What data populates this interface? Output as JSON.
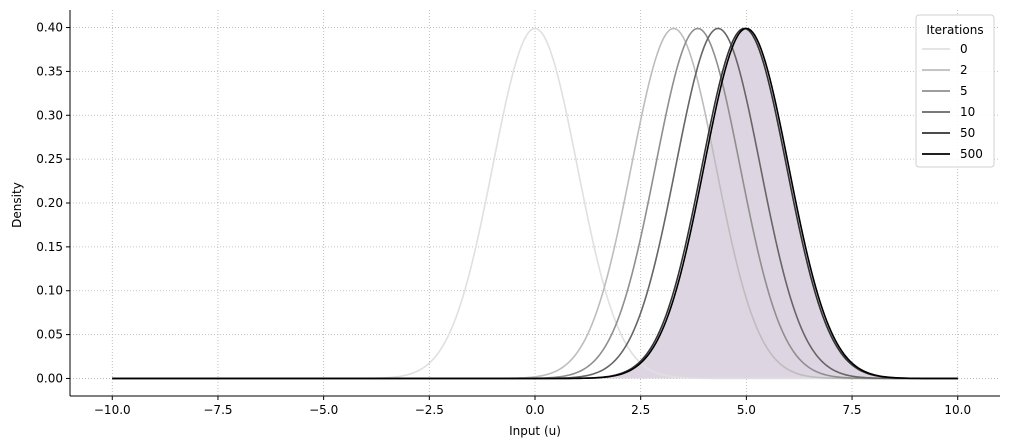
{
  "chart_data": {
    "type": "line",
    "title": "",
    "xlabel": "Input (u)",
    "ylabel": "Density",
    "xlim": [
      -11.0,
      11.0
    ],
    "ylim": [
      -0.02,
      0.42
    ],
    "x_ticks": [
      -10.0,
      -7.5,
      -5.0,
      -2.5,
      0.0,
      2.5,
      5.0,
      7.5,
      10.0
    ],
    "x_tick_labels": [
      "−10.0",
      "−7.5",
      "−5.0",
      "−2.5",
      "0.0",
      "2.5",
      "5.0",
      "7.5",
      "10.0"
    ],
    "y_ticks": [
      0.0,
      0.05,
      0.1,
      0.15,
      0.2,
      0.25,
      0.3,
      0.35,
      0.4
    ],
    "y_tick_labels": [
      "0.00",
      "0.05",
      "0.10",
      "0.15",
      "0.20",
      "0.25",
      "0.30",
      "0.35",
      "0.40"
    ],
    "grid": true,
    "grid_style": "dotted",
    "x_range": [
      -10.0,
      10.0
    ],
    "legend": {
      "title": "Iterations",
      "placement": "top-right"
    },
    "series": [
      {
        "name": "0",
        "mean": 0.0,
        "std": 1.0,
        "peak": 0.399,
        "color": "#e0e0e0"
      },
      {
        "name": "2",
        "mean": 3.28,
        "std": 1.0,
        "peak": 0.399,
        "color": "#bdbdbd"
      },
      {
        "name": "5",
        "mean": 3.85,
        "std": 1.0,
        "peak": 0.399,
        "color": "#8f8f8f"
      },
      {
        "name": "10",
        "mean": 4.33,
        "std": 1.0,
        "peak": 0.399,
        "color": "#666666"
      },
      {
        "name": "50",
        "mean": 4.95,
        "std": 1.0,
        "peak": 0.399,
        "color": "#333333"
      },
      {
        "name": "500",
        "mean": 5.0,
        "std": 1.0,
        "peak": 0.399,
        "color": "#000000"
      }
    ],
    "shaded_area": {
      "mean": 5.0,
      "std": 1.0,
      "color": "#dcd3e0"
    }
  }
}
